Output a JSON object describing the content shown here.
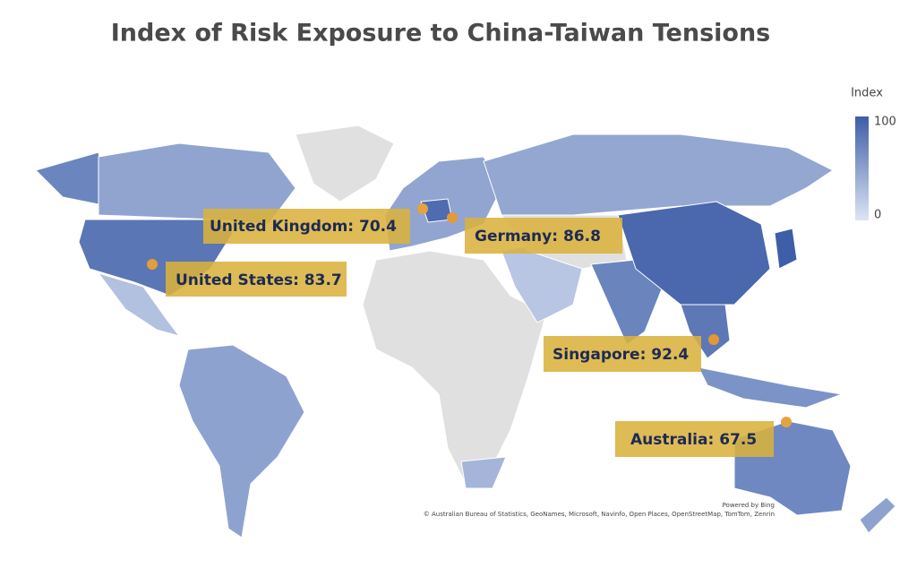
{
  "title": "Index of Risk Exposure to China-Taiwan Tensions",
  "legend": {
    "title": "Index",
    "max": 100,
    "min": 0
  },
  "callouts": [
    {
      "text": "United Kingdom: 70.4",
      "value": 70.4
    },
    {
      "text": "Germany: 86.8",
      "value": 86.8
    },
    {
      "text": "United States: 83.7",
      "value": 83.7
    },
    {
      "text": "Singapore: 92.4",
      "value": 92.4
    },
    {
      "text": "Australia: 67.5",
      "value": 67.5
    }
  ],
  "attribution": {
    "powered": "Powered by Bing",
    "credits": "© Australian Bureau of Statistics, GeoNames, Microsoft, Navinfo, Open Places, OpenStreetMap, TomTom, Zenrin"
  }
}
